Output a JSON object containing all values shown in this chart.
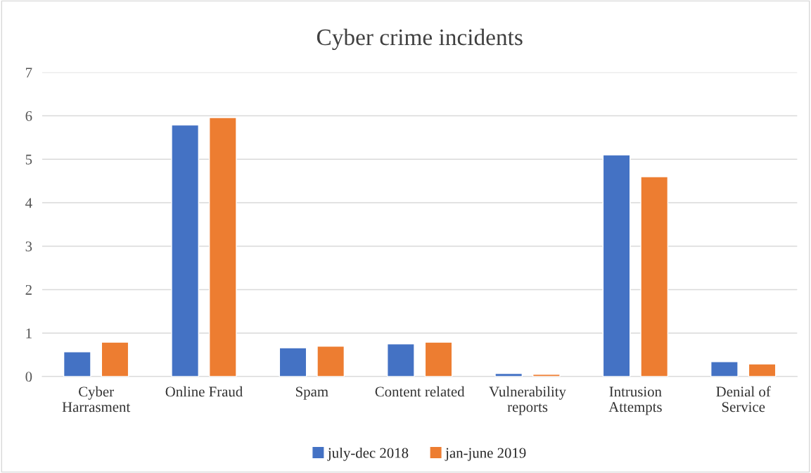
{
  "chart_data": {
    "type": "bar",
    "title": "Cyber crime incidents",
    "categories": [
      "Cyber Harrasment",
      "Online Fraud",
      "Spam",
      "Content related",
      "Vulnerability reports",
      "Intrusion Attempts",
      "Denial of Service"
    ],
    "series": [
      {
        "name": "july-dec 2018",
        "color": "#4472c4",
        "values": [
          0.57,
          5.79,
          0.66,
          0.75,
          0.07,
          5.1,
          0.34
        ]
      },
      {
        "name": "jan-june 2019",
        "color": "#ed7d31",
        "values": [
          0.79,
          5.96,
          0.7,
          0.79,
          0.05,
          4.6,
          0.29
        ]
      }
    ],
    "ylim": [
      0,
      7
    ],
    "yticks": [
      0,
      1,
      2,
      3,
      4,
      5,
      6,
      7
    ],
    "grid": "y",
    "legend": "bottom"
  }
}
